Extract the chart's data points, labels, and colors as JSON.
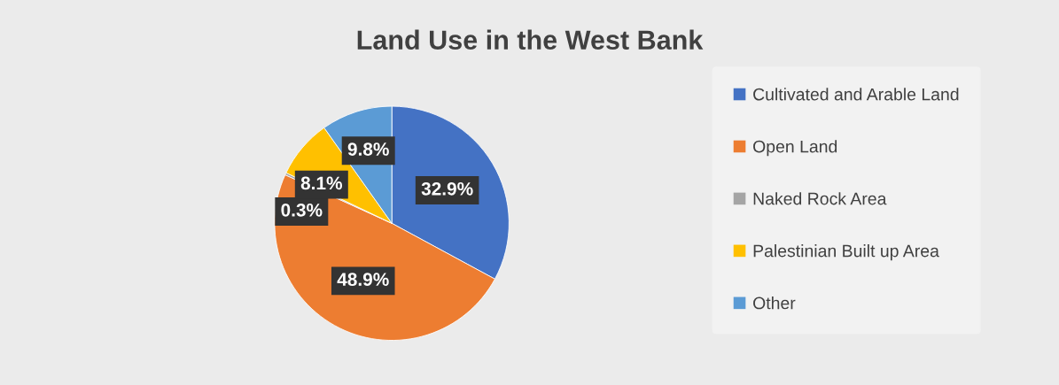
{
  "chart_data": {
    "type": "pie",
    "title": "Land Use in the West Bank",
    "categories": [
      "Cultivated and Arable Land",
      "Open Land",
      "Naked Rock Area",
      "Palestinian Built up Area",
      "Other"
    ],
    "values": [
      32.9,
      48.9,
      0.3,
      8.1,
      9.8
    ],
    "colors": [
      "#4472c4",
      "#ed7d31",
      "#a5a5a5",
      "#ffc000",
      "#5b9bd5"
    ],
    "value_labels": [
      "32.9%",
      "48.9%",
      "0.3%",
      "8.1%",
      "9.8%"
    ],
    "legend": "right"
  }
}
